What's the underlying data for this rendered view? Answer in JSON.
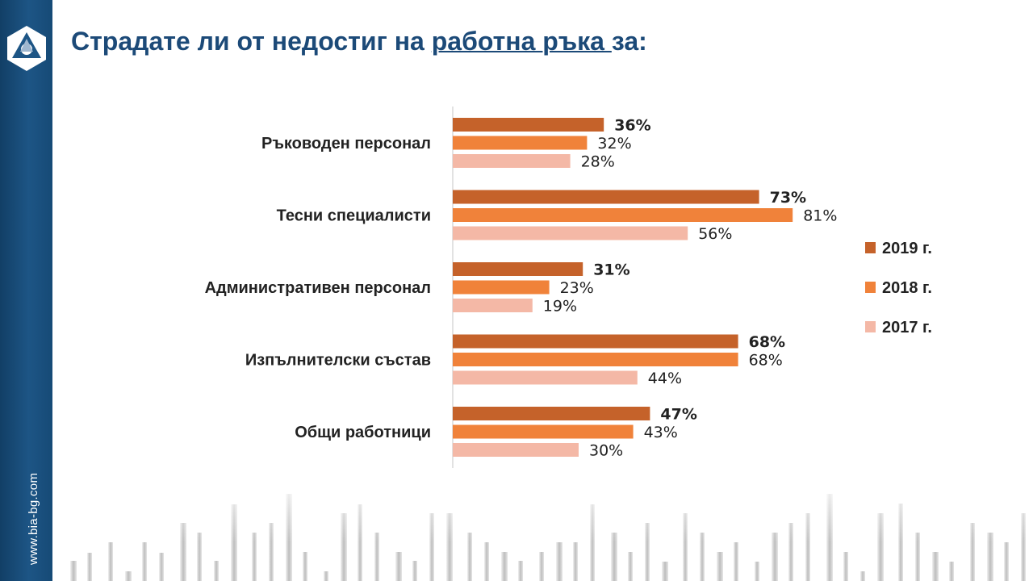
{
  "header": {
    "title_prefix": "Страдате ли от недостиг на ",
    "title_underlined": "работна ръка ",
    "title_suffix": "за:"
  },
  "sidebar": {
    "url": "www.bia-bg.com"
  },
  "colors": {
    "2019": "#c5622a",
    "2018": "#f0823a",
    "2017": "#f4b8a6",
    "axis": "#d9d9d9"
  },
  "chart_data": {
    "type": "bar",
    "orientation": "horizontal",
    "title": "Страдате ли от недостиг на работна ръка за:",
    "categories": [
      "Ръководен персонал",
      "Тесни специалисти",
      "Административен персонал",
      "Изпълнителски състав",
      "Общи работници"
    ],
    "series": [
      {
        "name": "2019 г.",
        "values": [
          36,
          73,
          31,
          68,
          47
        ],
        "labels": [
          "36%",
          "73%",
          "31%",
          "68%",
          "47%"
        ],
        "bold": true
      },
      {
        "name": "2018 г.",
        "values": [
          32,
          81,
          23,
          68,
          43
        ],
        "labels": [
          "32%",
          "81%",
          "23%",
          "68%",
          "43%"
        ],
        "bold": false
      },
      {
        "name": "2017 г.",
        "values": [
          28,
          56,
          19,
          44,
          30
        ],
        "labels": [
          "28%",
          "56%",
          "19%",
          "44%",
          "30%"
        ],
        "bold": false
      }
    ],
    "xlim": [
      0,
      100
    ],
    "legend": "right",
    "grid": false
  }
}
